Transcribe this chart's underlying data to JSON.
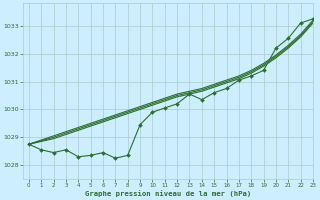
{
  "title": "Graphe pression niveau de la mer (hPa)",
  "bg_color": "#cceeff",
  "grid_color": "#aacccc",
  "line_color": "#2d6e2d",
  "xlim": [
    -0.5,
    23
  ],
  "ylim": [
    1027.5,
    1033.8
  ],
  "yticks": [
    1028,
    1029,
    1030,
    1031,
    1032,
    1033
  ],
  "xticks": [
    0,
    1,
    2,
    3,
    4,
    5,
    6,
    7,
    8,
    9,
    10,
    11,
    12,
    13,
    14,
    15,
    16,
    17,
    18,
    19,
    20,
    21,
    22,
    23
  ],
  "hours": [
    0,
    1,
    2,
    3,
    4,
    5,
    6,
    7,
    8,
    9,
    10,
    11,
    12,
    13,
    14,
    15,
    16,
    17,
    18,
    19,
    20,
    21,
    22,
    23
  ],
  "smooth1": [
    1028.75,
    1028.85,
    1028.95,
    1029.1,
    1029.25,
    1029.4,
    1029.55,
    1029.7,
    1029.85,
    1030.0,
    1030.15,
    1030.3,
    1030.45,
    1030.55,
    1030.65,
    1030.8,
    1030.95,
    1031.1,
    1031.3,
    1031.55,
    1031.85,
    1032.2,
    1032.6,
    1033.1
  ],
  "smooth2": [
    1028.75,
    1028.87,
    1029.0,
    1029.15,
    1029.3,
    1029.45,
    1029.6,
    1029.75,
    1029.9,
    1030.05,
    1030.2,
    1030.35,
    1030.5,
    1030.6,
    1030.7,
    1030.85,
    1031.0,
    1031.15,
    1031.35,
    1031.6,
    1031.9,
    1032.25,
    1032.65,
    1033.15
  ],
  "smooth3": [
    1028.75,
    1028.9,
    1029.05,
    1029.2,
    1029.35,
    1029.5,
    1029.65,
    1029.8,
    1029.95,
    1030.1,
    1030.25,
    1030.4,
    1030.55,
    1030.65,
    1030.75,
    1030.9,
    1031.05,
    1031.2,
    1031.4,
    1031.65,
    1031.95,
    1032.3,
    1032.7,
    1033.2
  ],
  "jagged": [
    1028.75,
    1028.55,
    1028.45,
    1028.55,
    1028.3,
    1028.35,
    1028.45,
    1028.25,
    1028.35,
    1029.45,
    1029.9,
    1030.05,
    1030.2,
    1030.55,
    1030.35,
    1030.6,
    1030.75,
    1031.05,
    1031.2,
    1031.4,
    1032.2,
    1032.55,
    1033.1,
    1033.25
  ]
}
